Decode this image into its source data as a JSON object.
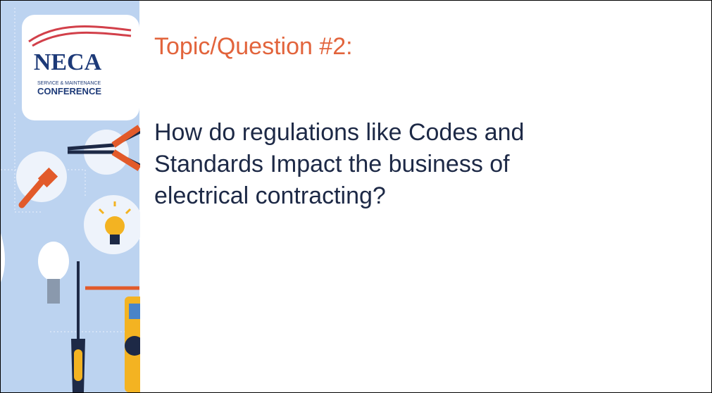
{
  "logo": {
    "name": "NECA",
    "tagline": "SERVICE & MAINTENANCE",
    "subtitle": "CONFERENCE"
  },
  "slide": {
    "title": "Topic/Question #2:",
    "body": "How do regulations like Codes and Standards Impact the business of electrical contracting?"
  }
}
